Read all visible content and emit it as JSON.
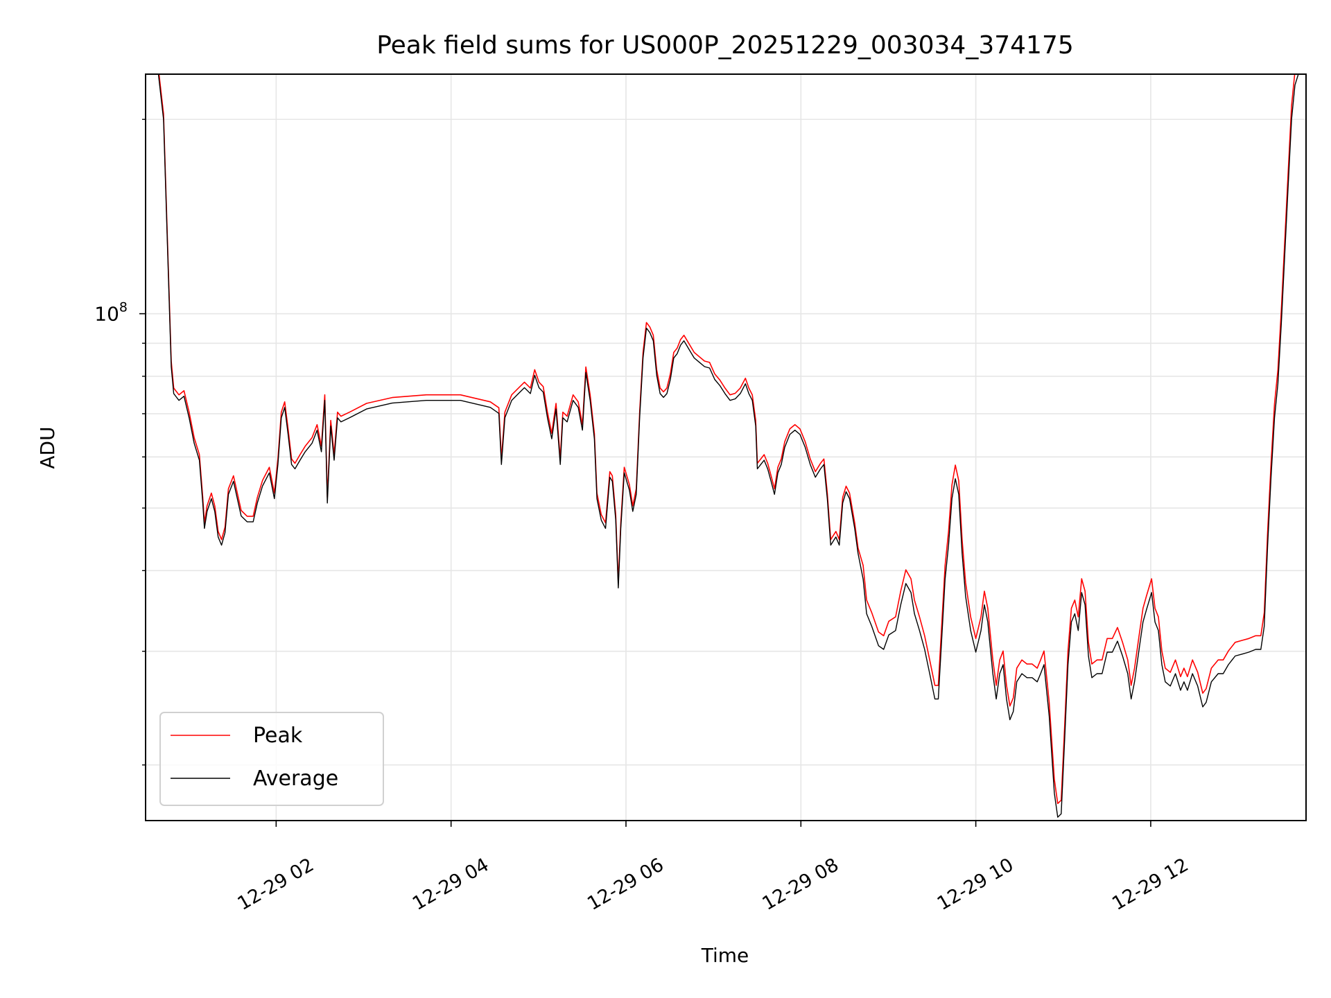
{
  "chart_data": {
    "type": "line",
    "title": "Peak field sums for US000P_20251229_003034_374175",
    "xlabel": "Time",
    "ylabel": "ADU",
    "x_units": "hours since 12-29 00:00",
    "y_scale": "log",
    "values_unit_multiplier": 1000000,
    "xlim": [
      0.507,
      13.776
    ],
    "ylim": [
      16.4,
      235
    ],
    "grid": true,
    "legend_position": "lower-left",
    "x_ticks": [
      {
        "value": 2,
        "label": "12-29 02"
      },
      {
        "value": 4,
        "label": "12-29 04"
      },
      {
        "value": 6,
        "label": "12-29 06"
      },
      {
        "value": 8,
        "label": "12-29 08"
      },
      {
        "value": 10,
        "label": "12-29 10"
      },
      {
        "value": 12,
        "label": "12-29 12"
      }
    ],
    "y_major_ticks": [
      {
        "value": 100,
        "base": "10",
        "exp": "8"
      }
    ],
    "y_minor_ticks": [
      20,
      30,
      40,
      50,
      60,
      70,
      80,
      90,
      200
    ],
    "series": [
      {
        "name": "Peak",
        "color": "#ff0000",
        "derived_from": "Average",
        "peak_over_average": [
          {
            "until": 8.7,
            "ratio": 1.02
          },
          {
            "until": 14,
            "ratio": 1.05
          }
        ]
      },
      {
        "name": "Average",
        "color": "#000000"
      }
    ],
    "average_points": [
      [
        0.507,
        235
      ],
      [
        0.654,
        235
      ],
      [
        0.712,
        200
      ],
      [
        0.761,
        123
      ],
      [
        0.8,
        82.8
      ],
      [
        0.829,
        75.2
      ],
      [
        0.888,
        73.4
      ],
      [
        0.946,
        74.5
      ],
      [
        1.005,
        69.0
      ],
      [
        1.063,
        63.0
      ],
      [
        1.122,
        59.3
      ],
      [
        1.161,
        50.9
      ],
      [
        1.18,
        46.5
      ],
      [
        1.21,
        49.4
      ],
      [
        1.259,
        51.7
      ],
      [
        1.298,
        49.4
      ],
      [
        1.337,
        45.1
      ],
      [
        1.376,
        43.8
      ],
      [
        1.415,
        45.8
      ],
      [
        1.454,
        52.5
      ],
      [
        1.512,
        55.0
      ],
      [
        1.6,
        48.6
      ],
      [
        1.668,
        47.6
      ],
      [
        1.737,
        47.6
      ],
      [
        1.785,
        50.9
      ],
      [
        1.844,
        54.1
      ],
      [
        1.922,
        56.7
      ],
      [
        1.98,
        51.7
      ],
      [
        2.02,
        58.4
      ],
      [
        2.059,
        69.0
      ],
      [
        2.098,
        71.6
      ],
      [
        2.137,
        65.0
      ],
      [
        2.176,
        58.4
      ],
      [
        2.215,
        57.5
      ],
      [
        2.273,
        59.3
      ],
      [
        2.332,
        61.1
      ],
      [
        2.41,
        63.0
      ],
      [
        2.468,
        66.0
      ],
      [
        2.517,
        61.1
      ],
      [
        2.556,
        73.4
      ],
      [
        2.585,
        50.9
      ],
      [
        2.624,
        67.0
      ],
      [
        2.663,
        59.3
      ],
      [
        2.702,
        69.0
      ],
      [
        2.741,
        68.0
      ],
      [
        2.839,
        69.0
      ],
      [
        3.034,
        71.2
      ],
      [
        3.327,
        72.7
      ],
      [
        3.717,
        73.4
      ],
      [
        4.107,
        73.4
      ],
      [
        4.449,
        71.6
      ],
      [
        4.546,
        70.1
      ],
      [
        4.576,
        58.4
      ],
      [
        4.615,
        69.0
      ],
      [
        4.693,
        73.4
      ],
      [
        4.771,
        75.2
      ],
      [
        4.839,
        76.8
      ],
      [
        4.907,
        75.2
      ],
      [
        4.956,
        80.3
      ],
      [
        5.005,
        76.8
      ],
      [
        5.054,
        75.6
      ],
      [
        5.102,
        69.0
      ],
      [
        5.151,
        64.0
      ],
      [
        5.2,
        71.2
      ],
      [
        5.249,
        58.4
      ],
      [
        5.278,
        69.0
      ],
      [
        5.327,
        68.0
      ],
      [
        5.395,
        73.4
      ],
      [
        5.454,
        71.6
      ],
      [
        5.502,
        66.0
      ],
      [
        5.541,
        81.1
      ],
      [
        5.59,
        73.4
      ],
      [
        5.639,
        64.0
      ],
      [
        5.668,
        51.7
      ],
      [
        5.717,
        47.9
      ],
      [
        5.766,
        46.5
      ],
      [
        5.815,
        55.8
      ],
      [
        5.844,
        55.0
      ],
      [
        5.883,
        47.9
      ],
      [
        5.912,
        37.6
      ],
      [
        5.941,
        46.5
      ],
      [
        5.98,
        56.7
      ],
      [
        6.039,
        53.3
      ],
      [
        6.078,
        49.4
      ],
      [
        6.117,
        52.5
      ],
      [
        6.156,
        69.0
      ],
      [
        6.195,
        85.4
      ],
      [
        6.234,
        95.0
      ],
      [
        6.273,
        93.5
      ],
      [
        6.312,
        90.8
      ],
      [
        6.351,
        80.3
      ],
      [
        6.39,
        75.2
      ],
      [
        6.429,
        74.2
      ],
      [
        6.468,
        75.2
      ],
      [
        6.507,
        79.1
      ],
      [
        6.546,
        85.4
      ],
      [
        6.585,
        86.7
      ],
      [
        6.624,
        89.4
      ],
      [
        6.663,
        90.8
      ],
      [
        6.722,
        88.0
      ],
      [
        6.78,
        85.4
      ],
      [
        6.839,
        84.1
      ],
      [
        6.898,
        82.8
      ],
      [
        6.956,
        82.4
      ],
      [
        7.015,
        79.1
      ],
      [
        7.073,
        77.4
      ],
      [
        7.132,
        75.2
      ],
      [
        7.19,
        73.4
      ],
      [
        7.249,
        73.8
      ],
      [
        7.307,
        75.2
      ],
      [
        7.366,
        77.9
      ],
      [
        7.405,
        75.2
      ],
      [
        7.444,
        73.4
      ],
      [
        7.483,
        67.0
      ],
      [
        7.502,
        57.5
      ],
      [
        7.541,
        58.4
      ],
      [
        7.58,
        59.3
      ],
      [
        7.62,
        57.5
      ],
      [
        7.659,
        55.0
      ],
      [
        7.698,
        52.5
      ],
      [
        7.737,
        56.7
      ],
      [
        7.776,
        58.4
      ],
      [
        7.815,
        62.1
      ],
      [
        7.873,
        65.0
      ],
      [
        7.932,
        66.0
      ],
      [
        7.99,
        65.0
      ],
      [
        8.049,
        62.1
      ],
      [
        8.107,
        58.4
      ],
      [
        8.166,
        55.8
      ],
      [
        8.224,
        57.5
      ],
      [
        8.263,
        58.4
      ],
      [
        8.302,
        51.7
      ],
      [
        8.341,
        43.8
      ],
      [
        8.4,
        45.1
      ],
      [
        8.439,
        43.8
      ],
      [
        8.478,
        50.9
      ],
      [
        8.517,
        53.0
      ],
      [
        8.556,
        51.7
      ],
      [
        8.615,
        46.5
      ],
      [
        8.654,
        42.5
      ],
      [
        8.712,
        38.8
      ],
      [
        8.751,
        34.3
      ],
      [
        8.81,
        32.8
      ],
      [
        8.888,
        30.6
      ],
      [
        8.946,
        30.2
      ],
      [
        9.005,
        31.8
      ],
      [
        9.083,
        32.3
      ],
      [
        9.141,
        35.4
      ],
      [
        9.2,
        38.2
      ],
      [
        9.259,
        37.0
      ],
      [
        9.298,
        34.3
      ],
      [
        9.356,
        32.3
      ],
      [
        9.415,
        30.2
      ],
      [
        9.473,
        27.7
      ],
      [
        9.532,
        25.3
      ],
      [
        9.571,
        25.3
      ],
      [
        9.61,
        31.3
      ],
      [
        9.649,
        38.8
      ],
      [
        9.688,
        43.8
      ],
      [
        9.727,
        51.7
      ],
      [
        9.766,
        55.5
      ],
      [
        9.805,
        52.5
      ],
      [
        9.844,
        42.5
      ],
      [
        9.883,
        36.5
      ],
      [
        9.941,
        32.3
      ],
      [
        10.0,
        29.9
      ],
      [
        10.059,
        32.3
      ],
      [
        10.098,
        35.4
      ],
      [
        10.137,
        33.3
      ],
      [
        10.156,
        31.3
      ],
      [
        10.195,
        27.7
      ],
      [
        10.234,
        25.3
      ],
      [
        10.273,
        27.7
      ],
      [
        10.312,
        28.6
      ],
      [
        10.351,
        25.3
      ],
      [
        10.39,
        23.5
      ],
      [
        10.429,
        24.2
      ],
      [
        10.468,
        26.9
      ],
      [
        10.527,
        27.7
      ],
      [
        10.585,
        27.3
      ],
      [
        10.644,
        27.3
      ],
      [
        10.702,
        26.9
      ],
      [
        10.741,
        27.7
      ],
      [
        10.78,
        28.6
      ],
      [
        10.839,
        23.8
      ],
      [
        10.898,
        18.1
      ],
      [
        10.937,
        16.6
      ],
      [
        10.976,
        16.8
      ],
      [
        11.015,
        21.8
      ],
      [
        11.054,
        28.6
      ],
      [
        11.093,
        33.3
      ],
      [
        11.132,
        34.3
      ],
      [
        11.171,
        32.3
      ],
      [
        11.21,
        37.0
      ],
      [
        11.249,
        35.4
      ],
      [
        11.288,
        29.5
      ],
      [
        11.327,
        27.3
      ],
      [
        11.385,
        27.7
      ],
      [
        11.444,
        27.7
      ],
      [
        11.502,
        29.9
      ],
      [
        11.561,
        29.9
      ],
      [
        11.62,
        31.1
      ],
      [
        11.678,
        29.5
      ],
      [
        11.737,
        27.7
      ],
      [
        11.776,
        25.3
      ],
      [
        11.815,
        26.9
      ],
      [
        11.873,
        30.6
      ],
      [
        11.912,
        33.3
      ],
      [
        11.951,
        34.8
      ],
      [
        12.01,
        37.0
      ],
      [
        12.049,
        33.3
      ],
      [
        12.088,
        32.3
      ],
      [
        12.127,
        28.6
      ],
      [
        12.166,
        26.9
      ],
      [
        12.224,
        26.5
      ],
      [
        12.283,
        27.7
      ],
      [
        12.341,
        26.1
      ],
      [
        12.38,
        26.9
      ],
      [
        12.42,
        26.1
      ],
      [
        12.478,
        27.7
      ],
      [
        12.537,
        26.5
      ],
      [
        12.595,
        24.6
      ],
      [
        12.634,
        25.0
      ],
      [
        12.693,
        26.9
      ],
      [
        12.771,
        27.7
      ],
      [
        12.829,
        27.7
      ],
      [
        12.888,
        28.6
      ],
      [
        12.966,
        29.5
      ],
      [
        13.044,
        29.7
      ],
      [
        13.122,
        29.9
      ],
      [
        13.2,
        30.2
      ],
      [
        13.259,
        30.2
      ],
      [
        13.298,
        32.8
      ],
      [
        13.337,
        43.8
      ],
      [
        13.376,
        55.8
      ],
      [
        13.415,
        69.0
      ],
      [
        13.454,
        77.9
      ],
      [
        13.493,
        96.4
      ],
      [
        13.532,
        123
      ],
      [
        13.571,
        157
      ],
      [
        13.61,
        200
      ],
      [
        13.649,
        226
      ],
      [
        13.688,
        235
      ],
      [
        13.776,
        235
      ]
    ]
  }
}
